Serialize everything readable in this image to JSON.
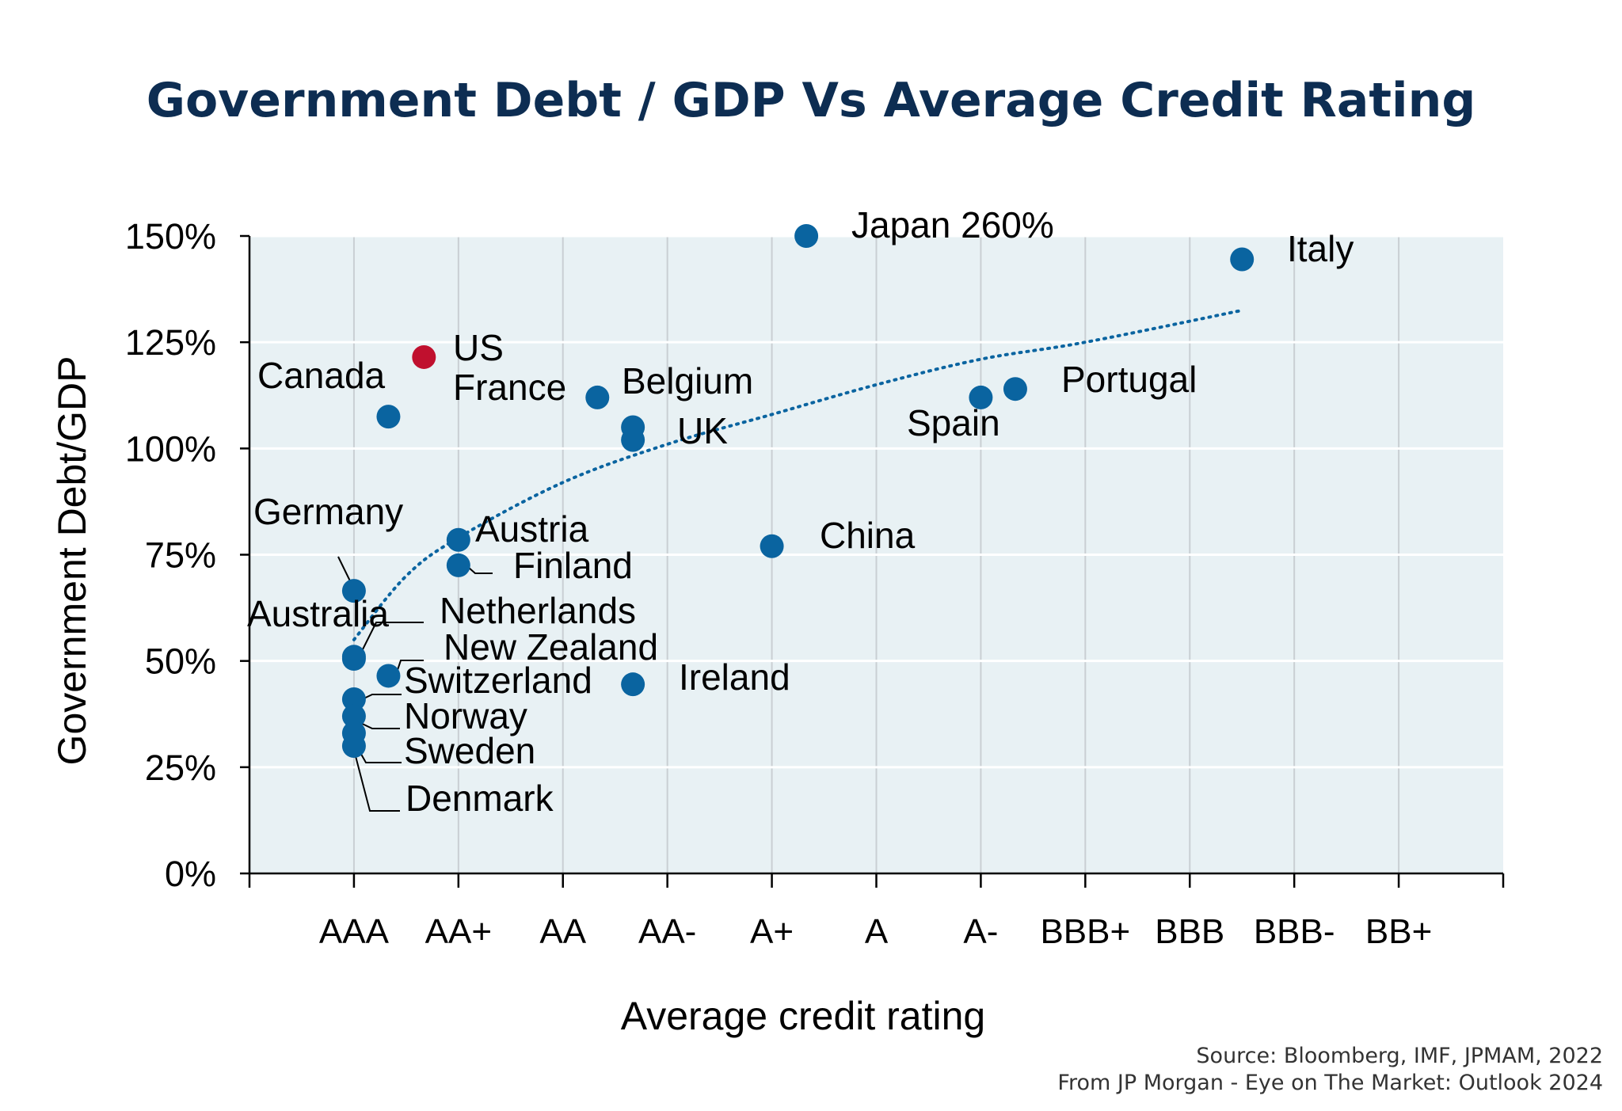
{
  "chart_data": {
    "type": "scatter",
    "title": "Government Debt / GDP Vs Average Credit Rating",
    "xlabel": "Average credit rating",
    "ylabel": "Government Debt/GDP",
    "categories": [
      "AAA",
      "AA+",
      "AA",
      "AA-",
      "A+",
      "A",
      "A-",
      "BBB+",
      "BBB",
      "BBB-",
      "BB+"
    ],
    "x_range": [
      0,
      12
    ],
    "ylim": [
      0,
      150
    ],
    "y_ticks": [
      {
        "value": 0,
        "label": "0%"
      },
      {
        "value": 25,
        "label": "25%"
      },
      {
        "value": 50,
        "label": "50%"
      },
      {
        "value": 75,
        "label": "75%"
      },
      {
        "value": 100,
        "label": "100%"
      },
      {
        "value": 125,
        "label": "125%"
      },
      {
        "value": 150,
        "label": "150%"
      }
    ],
    "grid": true,
    "points": [
      {
        "label": "Japan 260%",
        "x": 5.33,
        "y": 150,
        "color": "#0a64a0"
      },
      {
        "label": "Italy",
        "x": 9.5,
        "y": 144.5,
        "color": "#0a64a0"
      },
      {
        "label": "US",
        "x": 1.67,
        "y": 121.5,
        "color": "#c0102e"
      },
      {
        "label": "Canada",
        "x": 1.33,
        "y": 107.5,
        "color": "#0a64a0"
      },
      {
        "label": "France",
        "x": 3.33,
        "y": 112,
        "color": "#0a64a0"
      },
      {
        "label": "Belgium",
        "x": 3.67,
        "y": 105,
        "color": "#0a64a0"
      },
      {
        "label": "UK",
        "x": 3.67,
        "y": 102,
        "color": "#0a64a0"
      },
      {
        "label": "Portugal",
        "x": 7.33,
        "y": 114,
        "color": "#0a64a0"
      },
      {
        "label": "Spain",
        "x": 7.0,
        "y": 112,
        "color": "#0a64a0"
      },
      {
        "label": "China",
        "x": 5.0,
        "y": 77,
        "color": "#0a64a0"
      },
      {
        "label": "Austria",
        "x": 2.0,
        "y": 78.5,
        "color": "#0a64a0"
      },
      {
        "label": "Finland",
        "x": 2.0,
        "y": 72.5,
        "color": "#0a64a0"
      },
      {
        "label": "Germany",
        "x": 1.0,
        "y": 66.5,
        "color": "#0a64a0"
      },
      {
        "label": "Australia",
        "x": 1.0,
        "y": 50.5,
        "color": "#0a64a0"
      },
      {
        "label": "Netherlands",
        "x": 1.0,
        "y": 51,
        "color": "#0a64a0"
      },
      {
        "label": "New Zealand",
        "x": 1.33,
        "y": 46.5,
        "color": "#0a64a0"
      },
      {
        "label": "Ireland",
        "x": 3.67,
        "y": 44.5,
        "color": "#0a64a0"
      },
      {
        "label": "Switzerland",
        "x": 1.0,
        "y": 41,
        "color": "#0a64a0"
      },
      {
        "label": "Norway",
        "x": 1.0,
        "y": 37,
        "color": "#0a64a0"
      },
      {
        "label": "Sweden",
        "x": 1.0,
        "y": 33,
        "color": "#0a64a0"
      },
      {
        "label": "Denmark",
        "x": 1.0,
        "y": 30,
        "color": "#0a64a0"
      }
    ],
    "trendline": {
      "style": "dotted",
      "color": "#0a64a0",
      "points": [
        {
          "x": 1.0,
          "y": 55
        },
        {
          "x": 1.5,
          "y": 70
        },
        {
          "x": 2.0,
          "y": 79
        },
        {
          "x": 3.0,
          "y": 92
        },
        {
          "x": 4.0,
          "y": 101
        },
        {
          "x": 5.0,
          "y": 108
        },
        {
          "x": 6.0,
          "y": 115
        },
        {
          "x": 7.0,
          "y": 121
        },
        {
          "x": 8.0,
          "y": 125
        },
        {
          "x": 9.5,
          "y": 132.5
        }
      ]
    }
  },
  "source": {
    "line1": "Source: Bloomberg, IMF, JPMAM, 2022",
    "line2": "From JP Morgan - Eye on The Market: Outlook 2024"
  }
}
